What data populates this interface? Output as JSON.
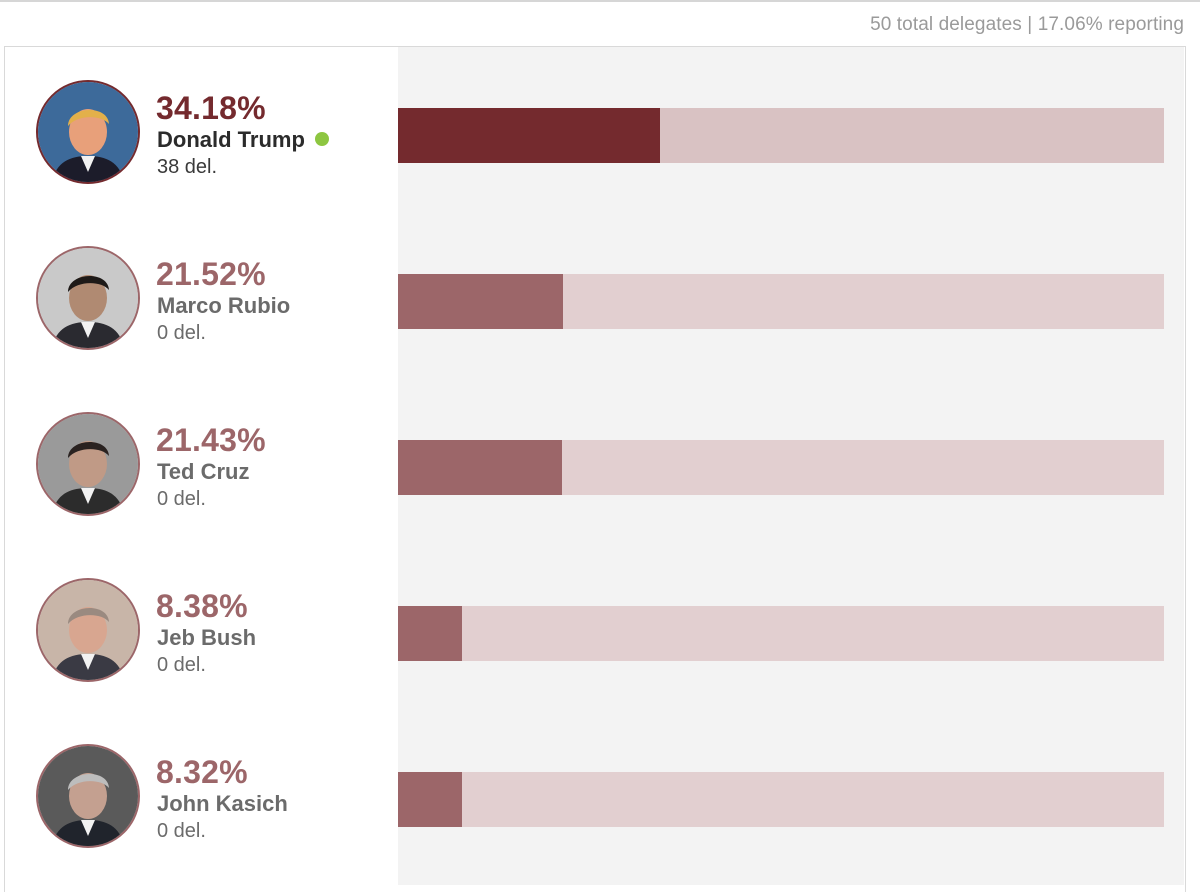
{
  "header": {
    "summary": "50 total delegates | 17.06% reporting"
  },
  "chart_data": {
    "type": "bar",
    "orientation": "horizontal",
    "title": "",
    "total_delegates": 50,
    "reporting_pct": 17.06,
    "xlim": [
      0,
      100
    ],
    "categories": [
      "Donald Trump",
      "Marco Rubio",
      "Ted Cruz",
      "Jeb Bush",
      "John Kasich"
    ],
    "values": [
      34.18,
      21.52,
      21.43,
      8.38,
      8.32
    ],
    "colors": {
      "leader": "#742a2e",
      "other": "#9c6669",
      "track_leader": "#d9c2c3",
      "track_other": "#e2cfd0",
      "winner_dot": "#8dc641"
    },
    "candidates": [
      {
        "name": "Donald Trump",
        "pct_label": "34.18%",
        "value": 34.18,
        "delegates": "38 del.",
        "leader": true,
        "winner": true,
        "photo_icon": "portrait-icon"
      },
      {
        "name": "Marco Rubio",
        "pct_label": "21.52%",
        "value": 21.52,
        "delegates": "0 del.",
        "leader": false,
        "winner": false,
        "photo_icon": "portrait-icon"
      },
      {
        "name": "Ted Cruz",
        "pct_label": "21.43%",
        "value": 21.43,
        "delegates": "0 del.",
        "leader": false,
        "winner": false,
        "photo_icon": "portrait-icon"
      },
      {
        "name": "Jeb Bush",
        "pct_label": "8.38%",
        "value": 8.38,
        "delegates": "0 del.",
        "leader": false,
        "winner": false,
        "photo_icon": "portrait-icon"
      },
      {
        "name": "John Kasich",
        "pct_label": "8.32%",
        "value": 8.32,
        "delegates": "0 del.",
        "leader": false,
        "winner": false,
        "photo_icon": "portrait-icon"
      }
    ]
  }
}
